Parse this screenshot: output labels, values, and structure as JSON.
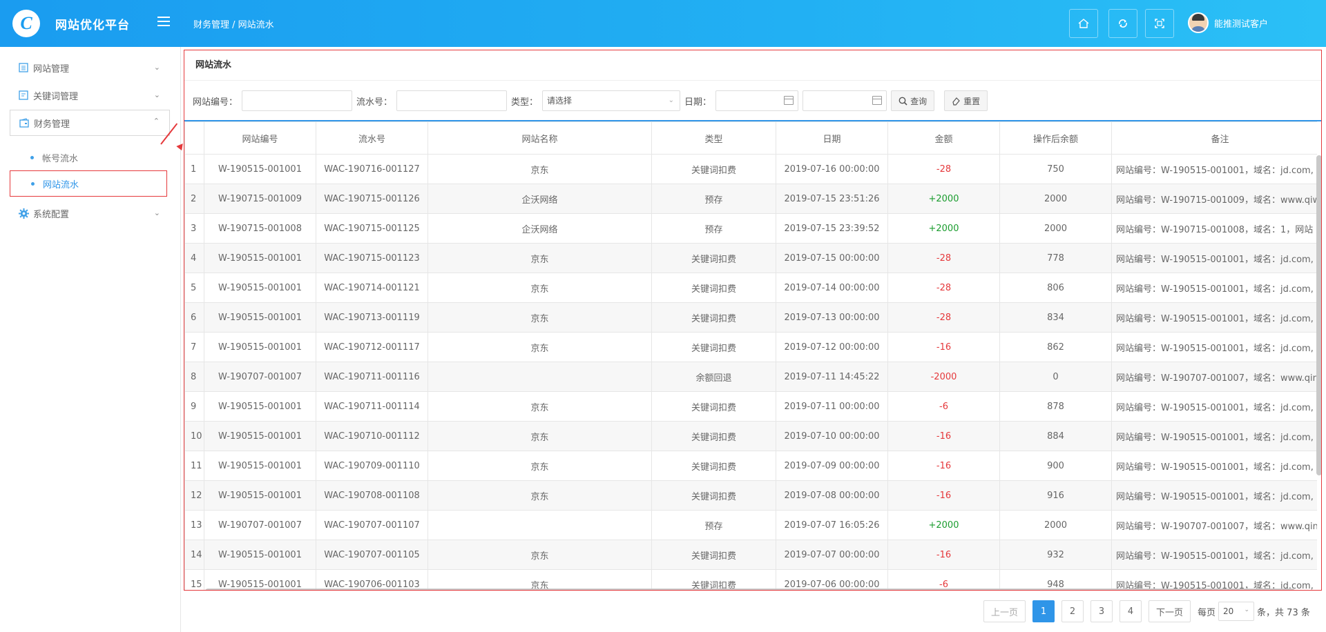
{
  "header": {
    "logo_letter": "C",
    "brand": "网站优化平台",
    "breadcrumb": "财务管理 / 网站流水",
    "user_name": "能推测试客户",
    "icons": [
      "home-icon",
      "refresh-icon",
      "fullscreen-icon"
    ]
  },
  "sidebar": {
    "items": [
      {
        "label": "网站管理",
        "icon": "list-icon"
      },
      {
        "label": "关键词管理",
        "icon": "edit-icon"
      },
      {
        "label": "财务管理",
        "icon": "wallet-icon"
      },
      {
        "label": "系统配置",
        "icon": "gear-icon"
      }
    ],
    "sub_items": [
      {
        "label": "帐号流水"
      },
      {
        "label": "网站流水"
      }
    ]
  },
  "panel": {
    "title": "网站流水",
    "filters": {
      "site_no_label": "网站编号：",
      "serial_no_label": "流水号：",
      "type_label": "类型：",
      "type_value": "请选择",
      "date_label": "日期：",
      "search_button": "查询",
      "reset_button": "重置"
    },
    "columns": [
      "",
      "网站编号",
      "流水号",
      "网站名称",
      "类型",
      "日期",
      "金额",
      "操作后余额",
      "备注"
    ],
    "rows": [
      {
        "idx": "1",
        "site": "W-190515-001001",
        "serial": "WAC-190716-001127",
        "name": "京东",
        "type": "关键词扣费",
        "date": "2019-07-16 00:00:00",
        "amount": "-28",
        "balance": "750",
        "note": "网站编号：W-190515-001001，域名：jd.com,"
      },
      {
        "idx": "2",
        "site": "W-190715-001009",
        "serial": "WAC-190715-001126",
        "name": "企沃网络",
        "type": "预存",
        "date": "2019-07-15 23:51:26",
        "amount": "+2000",
        "balance": "2000",
        "note": "网站编号：W-190715-001009，域名：www.qiw"
      },
      {
        "idx": "3",
        "site": "W-190715-001008",
        "serial": "WAC-190715-001125",
        "name": "企沃网络",
        "type": "预存",
        "date": "2019-07-15 23:39:52",
        "amount": "+2000",
        "balance": "2000",
        "note": "网站编号：W-190715-001008，域名：1，网站"
      },
      {
        "idx": "4",
        "site": "W-190515-001001",
        "serial": "WAC-190715-001123",
        "name": "京东",
        "type": "关键词扣费",
        "date": "2019-07-15 00:00:00",
        "amount": "-28",
        "balance": "778",
        "note": "网站编号：W-190515-001001，域名：jd.com,"
      },
      {
        "idx": "5",
        "site": "W-190515-001001",
        "serial": "WAC-190714-001121",
        "name": "京东",
        "type": "关键词扣费",
        "date": "2019-07-14 00:00:00",
        "amount": "-28",
        "balance": "806",
        "note": "网站编号：W-190515-001001，域名：jd.com,"
      },
      {
        "idx": "6",
        "site": "W-190515-001001",
        "serial": "WAC-190713-001119",
        "name": "京东",
        "type": "关键词扣费",
        "date": "2019-07-13 00:00:00",
        "amount": "-28",
        "balance": "834",
        "note": "网站编号：W-190515-001001，域名：jd.com,"
      },
      {
        "idx": "7",
        "site": "W-190515-001001",
        "serial": "WAC-190712-001117",
        "name": "京东",
        "type": "关键词扣费",
        "date": "2019-07-12 00:00:00",
        "amount": "-16",
        "balance": "862",
        "note": "网站编号：W-190515-001001，域名：jd.com,"
      },
      {
        "idx": "8",
        "site": "W-190707-001007",
        "serial": "WAC-190711-001116",
        "name": "",
        "type": "余额回退",
        "date": "2019-07-11 14:45:22",
        "amount": "-2000",
        "balance": "0",
        "note": "网站编号：W-190707-001007，域名：www.qin"
      },
      {
        "idx": "9",
        "site": "W-190515-001001",
        "serial": "WAC-190711-001114",
        "name": "京东",
        "type": "关键词扣费",
        "date": "2019-07-11 00:00:00",
        "amount": "-6",
        "balance": "878",
        "note": "网站编号：W-190515-001001，域名：jd.com,"
      },
      {
        "idx": "10",
        "site": "W-190515-001001",
        "serial": "WAC-190710-001112",
        "name": "京东",
        "type": "关键词扣费",
        "date": "2019-07-10 00:00:00",
        "amount": "-16",
        "balance": "884",
        "note": "网站编号：W-190515-001001，域名：jd.com,"
      },
      {
        "idx": "11",
        "site": "W-190515-001001",
        "serial": "WAC-190709-001110",
        "name": "京东",
        "type": "关键词扣费",
        "date": "2019-07-09 00:00:00",
        "amount": "-16",
        "balance": "900",
        "note": "网站编号：W-190515-001001，域名：jd.com,"
      },
      {
        "idx": "12",
        "site": "W-190515-001001",
        "serial": "WAC-190708-001108",
        "name": "京东",
        "type": "关键词扣费",
        "date": "2019-07-08 00:00:00",
        "amount": "-16",
        "balance": "916",
        "note": "网站编号：W-190515-001001，域名：jd.com,"
      },
      {
        "idx": "13",
        "site": "W-190707-001007",
        "serial": "WAC-190707-001107",
        "name": "",
        "type": "预存",
        "date": "2019-07-07 16:05:26",
        "amount": "+2000",
        "balance": "2000",
        "note": "网站编号：W-190707-001007，域名：www.qin"
      },
      {
        "idx": "14",
        "site": "W-190515-001001",
        "serial": "WAC-190707-001105",
        "name": "京东",
        "type": "关键词扣费",
        "date": "2019-07-07 00:00:00",
        "amount": "-16",
        "balance": "932",
        "note": "网站编号：W-190515-001001，域名：jd.com,"
      },
      {
        "idx": "15",
        "site": "W-190515-001001",
        "serial": "WAC-190706-001103",
        "name": "京东",
        "type": "关键词扣费",
        "date": "2019-07-06 00:00:00",
        "amount": "-6",
        "balance": "948",
        "note": "网站编号：W-190515-001001，域名：jd.com,"
      }
    ],
    "colors": {
      "negative": "#e5383b",
      "positive": "#1a9c2e",
      "accent": "#2f95e8"
    }
  },
  "pagination": {
    "prev": "上一页",
    "pages": [
      "1",
      "2",
      "3",
      "4"
    ],
    "current": "1",
    "next": "下一页",
    "per_page_label": "每页",
    "per_page_value": "20",
    "total_text": "条，共 73 条"
  }
}
